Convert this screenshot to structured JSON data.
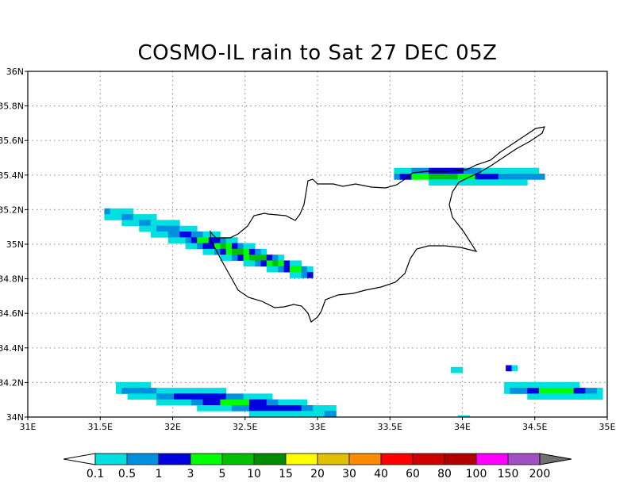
{
  "title": "COSMO-IL rain to Sat 27 DEC 05Z",
  "map": {
    "lon_range": [
      31,
      35
    ],
    "lat_range": [
      34,
      36
    ],
    "lon_ticks": [
      "31E",
      "31.5E",
      "32E",
      "32.5E",
      "33E",
      "33.5E",
      "34E",
      "34.5E",
      "35E"
    ],
    "lat_ticks": [
      "34N",
      "34.2N",
      "34.4N",
      "34.6N",
      "34.8N",
      "35N",
      "35.2N",
      "35.4N",
      "35.6N",
      "35.8N",
      "36N"
    ],
    "gridlines": "dotted",
    "coastline": "Cyprus",
    "rain_bands": [
      {
        "name": "northern-band",
        "lon": [
          33.5,
          34.55
        ],
        "lat": [
          35.35,
          35.45
        ],
        "max_class": "3-5"
      },
      {
        "name": "western-band",
        "lon": [
          31.5,
          32.95
        ],
        "lat": [
          34.8,
          35.22
        ],
        "max_class": "3-5"
      },
      {
        "name": "southwest-band",
        "lon": [
          31.55,
          33.1
        ],
        "lat": [
          34.0,
          34.25
        ],
        "max_class": "1-3"
      },
      {
        "name": "southeast-band",
        "lon": [
          34.25,
          34.95
        ],
        "lat": [
          34.05,
          34.3
        ],
        "max_class": "1-3"
      }
    ]
  },
  "colorbar": {
    "labels": [
      "0.1",
      "0.5",
      "1",
      "3",
      "5",
      "10",
      "15",
      "20",
      "30",
      "40",
      "60",
      "80",
      "100",
      "150",
      "200"
    ],
    "colors": [
      "#00e0e0",
      "#0090e0",
      "#0000e0",
      "#00ff00",
      "#00c000",
      "#008c00",
      "#ffff00",
      "#e0c000",
      "#ff8c00",
      "#ff0000",
      "#d00000",
      "#b00000",
      "#ff00ff",
      "#a050c0"
    ],
    "low_color": "#ffffff",
    "high_color": "#707070"
  }
}
